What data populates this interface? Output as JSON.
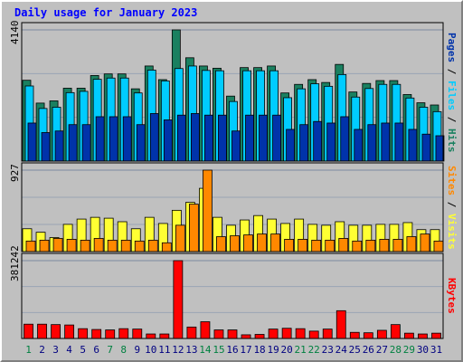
{
  "chart_data": {
    "type": "bar",
    "title": "Daily usage for January 2023",
    "categories": [
      "1",
      "2",
      "3",
      "4",
      "5",
      "6",
      "7",
      "8",
      "9",
      "10",
      "11",
      "12",
      "13",
      "14",
      "15",
      "16",
      "17",
      "18",
      "19",
      "20",
      "21",
      "22",
      "23",
      "24",
      "25",
      "26",
      "27",
      "28",
      "29",
      "30",
      "31"
    ],
    "weekend_categories": [
      "1",
      "7",
      "8",
      "14",
      "15",
      "21",
      "22",
      "28",
      "29"
    ],
    "colors": {
      "hits": "#1a8060",
      "files": "#00ccff",
      "pages": "#0033aa",
      "visits": "#ffff33",
      "sites": "#ff8800",
      "kbytes": "#ff0000",
      "plot_bg": "#c0c0c0",
      "weekend_label": "#008040",
      "weekday_label": "#000080"
    },
    "panels": [
      {
        "id": "hits-files-pages",
        "max_label": "4140",
        "ylim": [
          0,
          4140
        ],
        "series": [
          {
            "name": "Hits",
            "values": [
              2550,
              1830,
              1900,
              2300,
              2300,
              2700,
              2750,
              2750,
              2280,
              3000,
              2570,
              4140,
              3260,
              3000,
              2930,
              2050,
              2950,
              2950,
              3000,
              2150,
              2420,
              2570,
              2480,
              3050,
              2180,
              2450,
              2540,
              2540,
              2100,
              1840,
              1770
            ]
          },
          {
            "name": "Files",
            "values": [
              2370,
              1660,
              1700,
              2160,
              2200,
              2580,
              2620,
              2620,
              2150,
              2870,
              2530,
              2920,
              3000,
              2860,
              2850,
              1880,
              2850,
              2850,
              2850,
              2000,
              2280,
              2440,
              2360,
              2730,
              2020,
              2290,
              2420,
              2420,
              1990,
              1700,
              1560
            ]
          },
          {
            "name": "Pages",
            "values": [
              1200,
              900,
              950,
              1150,
              1150,
              1400,
              1400,
              1400,
              1150,
              1500,
              1300,
              1450,
              1500,
              1450,
              1450,
              950,
              1450,
              1450,
              1450,
              1000,
              1150,
              1250,
              1200,
              1400,
              1000,
              1150,
              1200,
              1200,
              1000,
              850,
              800
            ]
          }
        ],
        "right_labels": [
          "Pages",
          "Files",
          "Hits"
        ]
      },
      {
        "id": "visits-sites",
        "max_label": "927",
        "ylim": [
          0,
          927
        ],
        "series": [
          {
            "name": "Visits",
            "values": [
              260,
              220,
              160,
              310,
              370,
              390,
              380,
              340,
              260,
              390,
              320,
              470,
              560,
              720,
              390,
              300,
              360,
              410,
              370,
              320,
              370,
              310,
              300,
              340,
              300,
              300,
              310,
              310,
              330,
              250,
              250
            ]
          },
          {
            "name": "Sites",
            "values": [
              120,
              130,
              150,
              140,
              130,
              150,
              130,
              130,
              120,
              130,
              100,
              300,
              540,
              927,
              170,
              180,
              190,
              200,
              200,
              140,
              140,
              130,
              130,
              150,
              120,
              130,
              140,
              140,
              170,
              200,
              120
            ]
          }
        ],
        "right_labels": [
          "Sites",
          "Visits"
        ]
      },
      {
        "id": "kbytes",
        "max_label": "381242",
        "ylim": [
          0,
          381242
        ],
        "series": [
          {
            "name": "KBytes",
            "values": [
              70000,
              70000,
              68000,
              66000,
              48000,
              44000,
              42000,
              48000,
              46000,
              22000,
              22000,
              381242,
              56000,
              82000,
              42000,
              42000,
              18000,
              20000,
              46000,
              50000,
              48000,
              36000,
              46000,
              136000,
              30000,
              28000,
              40000,
              68000,
              26000,
              22000,
              26000
            ]
          }
        ],
        "right_labels": [
          "KBytes"
        ]
      }
    ]
  }
}
